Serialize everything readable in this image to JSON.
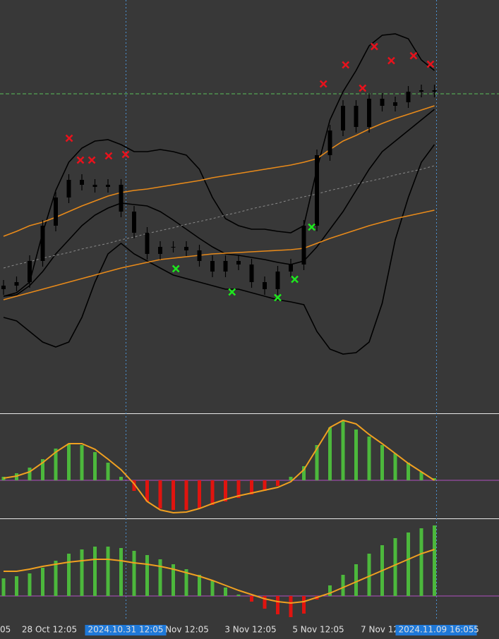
{
  "chart_data": [
    {
      "type": "candlestick",
      "background": "#383838",
      "open": [
        175,
        180,
        185,
        215,
        265,
        305,
        330,
        323,
        320,
        323,
        285,
        255,
        225,
        235,
        235,
        230,
        215,
        200,
        215,
        210,
        185,
        175,
        200,
        210,
        265,
        365,
        400,
        435,
        405,
        445,
        435,
        440,
        455,
        457
      ],
      "high": [
        188,
        193,
        223,
        273,
        313,
        338,
        338,
        331,
        331,
        331,
        293,
        263,
        243,
        243,
        243,
        238,
        223,
        223,
        223,
        218,
        193,
        208,
        218,
        273,
        373,
        408,
        443,
        443,
        453,
        453,
        448,
        463,
        465,
        465
      ],
      "low": [
        167,
        172,
        177,
        207,
        257,
        297,
        315,
        312,
        312,
        277,
        247,
        217,
        217,
        227,
        222,
        207,
        192,
        192,
        202,
        177,
        167,
        167,
        192,
        202,
        257,
        357,
        392,
        397,
        397,
        427,
        427,
        432,
        447,
        447
      ],
      "close": [
        180,
        185,
        215,
        265,
        305,
        330,
        323,
        320,
        323,
        285,
        255,
        225,
        235,
        235,
        230,
        215,
        200,
        215,
        210,
        185,
        175,
        200,
        210,
        265,
        365,
        400,
        435,
        405,
        445,
        435,
        440,
        455,
        457,
        455
      ],
      "candle_color": "#000000",
      "lines": [
        {
          "color": "#000000",
          "dashed": false,
          "values": [
            165,
            170,
            185,
            255,
            315,
            355,
            375,
            385,
            387,
            380,
            370,
            370,
            373,
            370,
            365,
            345,
            305,
            275,
            265,
            260,
            260,
            257,
            255,
            265,
            345,
            415,
            455,
            485,
            520,
            535,
            537,
            530,
            500,
            485
          ]
        },
        {
          "color": "#000000",
          "dashed": false,
          "values": [
            165,
            167,
            180,
            200,
            225,
            245,
            265,
            280,
            290,
            297,
            295,
            293,
            285,
            273,
            260,
            247,
            235,
            225,
            223,
            220,
            217,
            213,
            210,
            215,
            235,
            260,
            285,
            315,
            345,
            370,
            385,
            400,
            415,
            430
          ]
        },
        {
          "color": "#000000",
          "dashed": false,
          "values": [
            135,
            130,
            115,
            100,
            93,
            100,
            135,
            185,
            225,
            240,
            225,
            215,
            205,
            195,
            190,
            185,
            180,
            175,
            175,
            170,
            165,
            160,
            157,
            153,
            115,
            90,
            83,
            85,
            100,
            155,
            245,
            305,
            355,
            380
          ]
        },
        {
          "color": "#e88a1a",
          "dashed": false,
          "values": [
            250,
            257,
            265,
            270,
            277,
            285,
            293,
            300,
            307,
            312,
            315,
            317,
            320,
            323,
            326,
            329,
            333,
            336,
            339,
            342,
            345,
            348,
            351,
            355,
            360,
            373,
            385,
            393,
            402,
            410,
            417,
            423,
            429,
            435
          ]
        },
        {
          "color": "#e88a1a",
          "dashed": false,
          "values": [
            160,
            165,
            170,
            175,
            180,
            185,
            190,
            195,
            200,
            205,
            209,
            213,
            217,
            219,
            221,
            223,
            225,
            226,
            227,
            228,
            229,
            230,
            231,
            233,
            240,
            247,
            253,
            259,
            265,
            270,
            275,
            279,
            283,
            287
          ]
        },
        {
          "color": "#8a8a8a",
          "dashed": true,
          "values": [
            205,
            210,
            214,
            219,
            223,
            227,
            232,
            236,
            240,
            245,
            249,
            254,
            258,
            262,
            267,
            271,
            275,
            280,
            284,
            289,
            293,
            297,
            302,
            306,
            310,
            315,
            319,
            324,
            328,
            332,
            337,
            341,
            345,
            350
          ]
        }
      ],
      "markers": [
        {
          "color": "#e8121c",
          "x": [
            5.03,
            5.89,
            6.76,
            8.05,
            9.35,
            24.5,
            26.2,
            27.5,
            28.4,
            29.7,
            31.4,
            32.7
          ],
          "values": [
            389,
            358,
            358,
            364,
            366,
            466,
            493,
            460,
            519,
            499,
            506,
            494
          ]
        },
        {
          "color": "#1ee81e",
          "x": [
            13.2,
            17.5,
            21.0,
            22.3,
            23.6
          ],
          "values": [
            204,
            171,
            163,
            189,
            263
          ]
        }
      ],
      "level": 452,
      "level_color": "#5ac05a",
      "ylim": [
        0,
        585
      ]
    },
    {
      "type": "histogram",
      "positive_color": "#4cb83c",
      "negative_color": "#e0140f",
      "signal_color": "#f0a020",
      "zero_color": "#b050c0",
      "values": [
        5,
        10,
        18,
        30,
        45,
        52,
        50,
        40,
        25,
        5,
        -15,
        -30,
        -40,
        -42,
        -42,
        -40,
        -35,
        -30,
        -25,
        -20,
        -15,
        -8,
        5,
        20,
        50,
        75,
        85,
        72,
        62,
        50,
        38,
        25,
        12,
        3
      ],
      "signal": [
        3,
        6,
        12,
        25,
        40,
        52,
        52,
        44,
        30,
        15,
        -5,
        -30,
        -42,
        -46,
        -45,
        -40,
        -33,
        -27,
        -22,
        -18,
        -14,
        -10,
        -2,
        15,
        45,
        75,
        85,
        80,
        65,
        52,
        38,
        24,
        12,
        0
      ],
      "ylim": [
        -52,
        93
      ]
    },
    {
      "type": "histogram",
      "positive_color": "#4cb83c",
      "negative_color": "#e0140f",
      "signal_color": "#f0a020",
      "zero_color": "#b050c0",
      "values": [
        25,
        28,
        32,
        40,
        50,
        60,
        66,
        70,
        70,
        68,
        64,
        58,
        52,
        45,
        38,
        30,
        22,
        12,
        2,
        -8,
        -18,
        -26,
        -30,
        -25,
        -5,
        15,
        30,
        45,
        60,
        72,
        82,
        90,
        96,
        100
      ],
      "signal": [
        35,
        35,
        38,
        42,
        45,
        48,
        50,
        52,
        52,
        50,
        47,
        45,
        42,
        38,
        33,
        28,
        22,
        15,
        8,
        2,
        -4,
        -8,
        -10,
        -8,
        -2,
        4,
        12,
        20,
        28,
        36,
        44,
        52,
        60,
        66
      ],
      "ylim": [
        -35,
        107
      ]
    }
  ],
  "time_axis": {
    "labels": [
      "05",
      "28 Oct 12:05",
      "2024.10.31 12:05",
      "Nov 12:05",
      "3 Nov 12:05",
      "5 Nov 12:05",
      "7 Nov 12",
      "2024.11.09 16:05",
      "5"
    ],
    "highlighted": [
      false,
      false,
      true,
      false,
      false,
      false,
      false,
      true,
      false
    ],
    "highlight_color": "#1e78d8"
  }
}
